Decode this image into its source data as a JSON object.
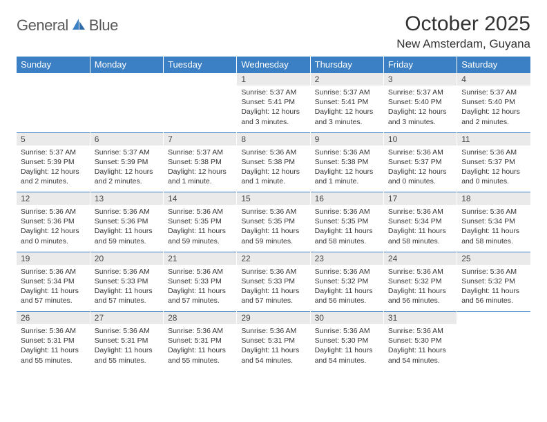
{
  "logo": {
    "text1": "General",
    "text2": "Blue"
  },
  "title": "October 2025",
  "location": "New Amsterdam, Guyana",
  "colors": {
    "header_bg": "#3b7fc4",
    "header_fg": "#ffffff",
    "daynum_bg": "#eaeaea",
    "border": "#3b7fc4",
    "text": "#333333"
  },
  "day_labels": [
    "Sunday",
    "Monday",
    "Tuesday",
    "Wednesday",
    "Thursday",
    "Friday",
    "Saturday"
  ],
  "weeks": [
    [
      null,
      null,
      null,
      {
        "n": "1",
        "sr": "5:37 AM",
        "ss": "5:41 PM",
        "dl": "12 hours and 3 minutes."
      },
      {
        "n": "2",
        "sr": "5:37 AM",
        "ss": "5:41 PM",
        "dl": "12 hours and 3 minutes."
      },
      {
        "n": "3",
        "sr": "5:37 AM",
        "ss": "5:40 PM",
        "dl": "12 hours and 3 minutes."
      },
      {
        "n": "4",
        "sr": "5:37 AM",
        "ss": "5:40 PM",
        "dl": "12 hours and 2 minutes."
      }
    ],
    [
      {
        "n": "5",
        "sr": "5:37 AM",
        "ss": "5:39 PM",
        "dl": "12 hours and 2 minutes."
      },
      {
        "n": "6",
        "sr": "5:37 AM",
        "ss": "5:39 PM",
        "dl": "12 hours and 2 minutes."
      },
      {
        "n": "7",
        "sr": "5:37 AM",
        "ss": "5:38 PM",
        "dl": "12 hours and 1 minute."
      },
      {
        "n": "8",
        "sr": "5:36 AM",
        "ss": "5:38 PM",
        "dl": "12 hours and 1 minute."
      },
      {
        "n": "9",
        "sr": "5:36 AM",
        "ss": "5:38 PM",
        "dl": "12 hours and 1 minute."
      },
      {
        "n": "10",
        "sr": "5:36 AM",
        "ss": "5:37 PM",
        "dl": "12 hours and 0 minutes."
      },
      {
        "n": "11",
        "sr": "5:36 AM",
        "ss": "5:37 PM",
        "dl": "12 hours and 0 minutes."
      }
    ],
    [
      {
        "n": "12",
        "sr": "5:36 AM",
        "ss": "5:36 PM",
        "dl": "12 hours and 0 minutes."
      },
      {
        "n": "13",
        "sr": "5:36 AM",
        "ss": "5:36 PM",
        "dl": "11 hours and 59 minutes."
      },
      {
        "n": "14",
        "sr": "5:36 AM",
        "ss": "5:35 PM",
        "dl": "11 hours and 59 minutes."
      },
      {
        "n": "15",
        "sr": "5:36 AM",
        "ss": "5:35 PM",
        "dl": "11 hours and 59 minutes."
      },
      {
        "n": "16",
        "sr": "5:36 AM",
        "ss": "5:35 PM",
        "dl": "11 hours and 58 minutes."
      },
      {
        "n": "17",
        "sr": "5:36 AM",
        "ss": "5:34 PM",
        "dl": "11 hours and 58 minutes."
      },
      {
        "n": "18",
        "sr": "5:36 AM",
        "ss": "5:34 PM",
        "dl": "11 hours and 58 minutes."
      }
    ],
    [
      {
        "n": "19",
        "sr": "5:36 AM",
        "ss": "5:34 PM",
        "dl": "11 hours and 57 minutes."
      },
      {
        "n": "20",
        "sr": "5:36 AM",
        "ss": "5:33 PM",
        "dl": "11 hours and 57 minutes."
      },
      {
        "n": "21",
        "sr": "5:36 AM",
        "ss": "5:33 PM",
        "dl": "11 hours and 57 minutes."
      },
      {
        "n": "22",
        "sr": "5:36 AM",
        "ss": "5:33 PM",
        "dl": "11 hours and 57 minutes."
      },
      {
        "n": "23",
        "sr": "5:36 AM",
        "ss": "5:32 PM",
        "dl": "11 hours and 56 minutes."
      },
      {
        "n": "24",
        "sr": "5:36 AM",
        "ss": "5:32 PM",
        "dl": "11 hours and 56 minutes."
      },
      {
        "n": "25",
        "sr": "5:36 AM",
        "ss": "5:32 PM",
        "dl": "11 hours and 56 minutes."
      }
    ],
    [
      {
        "n": "26",
        "sr": "5:36 AM",
        "ss": "5:31 PM",
        "dl": "11 hours and 55 minutes."
      },
      {
        "n": "27",
        "sr": "5:36 AM",
        "ss": "5:31 PM",
        "dl": "11 hours and 55 minutes."
      },
      {
        "n": "28",
        "sr": "5:36 AM",
        "ss": "5:31 PM",
        "dl": "11 hours and 55 minutes."
      },
      {
        "n": "29",
        "sr": "5:36 AM",
        "ss": "5:31 PM",
        "dl": "11 hours and 54 minutes."
      },
      {
        "n": "30",
        "sr": "5:36 AM",
        "ss": "5:30 PM",
        "dl": "11 hours and 54 minutes."
      },
      {
        "n": "31",
        "sr": "5:36 AM",
        "ss": "5:30 PM",
        "dl": "11 hours and 54 minutes."
      },
      null
    ]
  ],
  "labels": {
    "sunrise": "Sunrise:",
    "sunset": "Sunset:",
    "daylight": "Daylight:"
  }
}
